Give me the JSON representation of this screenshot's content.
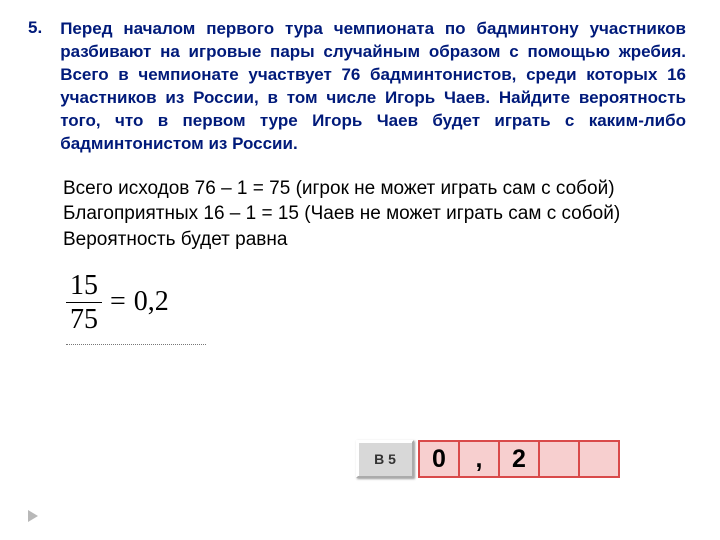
{
  "problem": {
    "number": "5.",
    "text": "Перед началом первого тура чемпионата по бадминтону участников разбивают на игровые пары случайным образом с помощью жребия. Всего в чемпионате участвует 76 бадминтонистов, среди которых 16 участников из России, в том числе Игорь Чаев. Найдите вероятность того, что в первом туре Игорь Чаев будет играть с каким-либо бадминтонистом из России."
  },
  "solution": {
    "line1": "Всего исходов  76 – 1 = 75 (игрок не может играть сам с собой)",
    "line2": "Благоприятных  16 – 1 = 15 (Чаев не может играть сам с собой)",
    "line3": "Вероятность  будет равна"
  },
  "fraction": {
    "numerator": "15",
    "denominator": "75",
    "equals": "=",
    "result": "0,2"
  },
  "answer": {
    "label": "В 5",
    "cells": [
      "0",
      ",",
      "2",
      "",
      ""
    ]
  },
  "colors": {
    "problem_text": "#001a7a",
    "solution_text": "#000000",
    "cell_border": "#d94a4a",
    "cell_bg": "#f7cfcf",
    "button_bg": "#d8d8d8"
  }
}
